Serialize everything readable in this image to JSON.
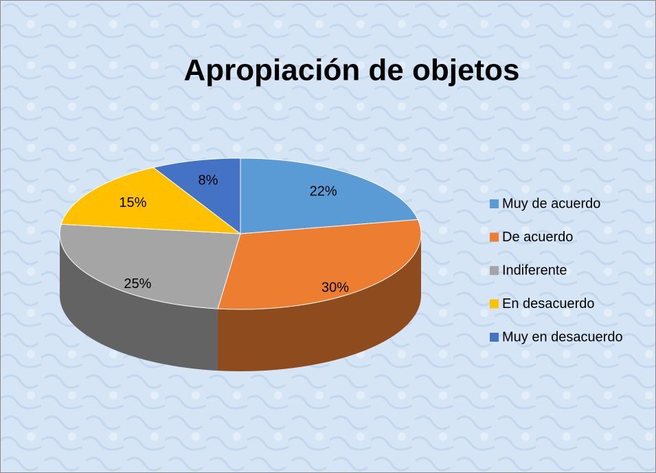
{
  "chart_data": {
    "type": "pie",
    "title": "Apropiación de objetos",
    "categories": [
      "Muy de acuerdo",
      "De acuerdo",
      "Indiferente",
      "En desacuerdo",
      "Muy en desacuerdo"
    ],
    "values": [
      22,
      30,
      25,
      15,
      8
    ],
    "value_labels": [
      "22%",
      "30%",
      "25%",
      "15%",
      "8%"
    ],
    "colors": [
      "#5b9bd5",
      "#ed7d31",
      "#a5a5a5",
      "#ffc000",
      "#4472c4"
    ],
    "legend": "right"
  }
}
